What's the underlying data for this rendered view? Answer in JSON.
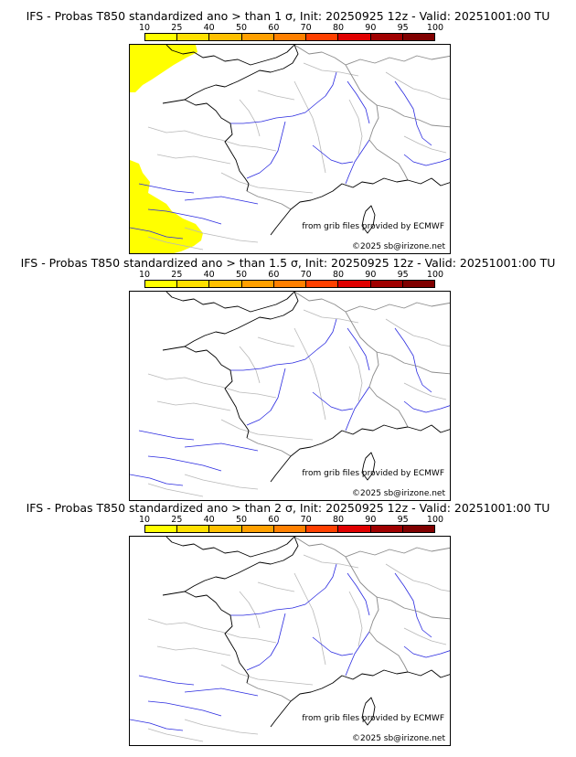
{
  "scale": {
    "labels": [
      "10",
      "25",
      "40",
      "50",
      "60",
      "70",
      "80",
      "90",
      "95",
      "100"
    ],
    "colors": [
      "#ffff00",
      "#ffe000",
      "#ffc000",
      "#ffa000",
      "#ff8000",
      "#ff4000",
      "#e00000",
      "#a00000",
      "#800000"
    ]
  },
  "panels": [
    {
      "title": "IFS - Probas T850  standardized ano > than 1 σ, Init: 20250925 12z - Valid: 20251001:00 TU",
      "credit_source": "from grib files provided by ECMWF",
      "credit_copyright": "©2025 sb@irizone.net",
      "prob_color": "#ffff00",
      "has_prob_area": true
    },
    {
      "title": "IFS - Probas T850  standardized ano > than 1.5 σ, Init: 20250925 12z - Valid: 20251001:00 TU",
      "credit_source": "from grib files provided by ECMWF",
      "credit_copyright": "©2025 sb@irizone.net",
      "has_prob_area": false
    },
    {
      "title": "IFS - Probas T850  standardized ano > than 2 σ, Init: 20250925 12z - Valid: 20251001:00 TU",
      "credit_source": "from grib files provided by ECMWF",
      "credit_copyright": "©2025 sb@irizone.net",
      "has_prob_area": false
    }
  ]
}
